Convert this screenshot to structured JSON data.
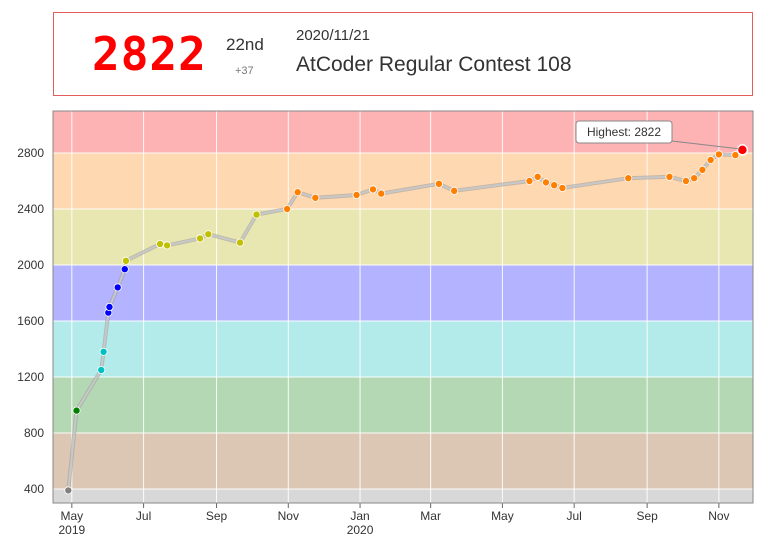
{
  "status": {
    "rating": "2822",
    "place": "22nd",
    "diff": "+37",
    "date": "2020/11/21",
    "contest": "AtCoder Regular Contest 108"
  },
  "chart_data": {
    "type": "line",
    "title": "",
    "xlabel": "",
    "ylabel": "",
    "ylim": [
      300,
      3100
    ],
    "xlim": [
      "2019-04-15",
      "2020-11-30"
    ],
    "grid": true,
    "y_ticks": [
      400,
      800,
      1200,
      1600,
      2000,
      2400,
      2800
    ],
    "x_ticks": [
      {
        "date": "2019-05-01",
        "label": "May",
        "sub": "2019"
      },
      {
        "date": "2019-07-01",
        "label": "Jul",
        "sub": ""
      },
      {
        "date": "2019-09-01",
        "label": "Sep",
        "sub": ""
      },
      {
        "date": "2019-11-01",
        "label": "Nov",
        "sub": ""
      },
      {
        "date": "2020-01-01",
        "label": "Jan",
        "sub": "2020"
      },
      {
        "date": "2020-03-01",
        "label": "Mar",
        "sub": ""
      },
      {
        "date": "2020-05-01",
        "label": "May",
        "sub": ""
      },
      {
        "date": "2020-07-01",
        "label": "Jul",
        "sub": ""
      },
      {
        "date": "2020-09-01",
        "label": "Sep",
        "sub": ""
      },
      {
        "date": "2020-11-01",
        "label": "Nov",
        "sub": ""
      }
    ],
    "bands": [
      {
        "from": 300,
        "to": 400,
        "color": "#d8d8d8"
      },
      {
        "from": 400,
        "to": 800,
        "color": "#dcc7b4"
      },
      {
        "from": 800,
        "to": 1200,
        "color": "#b3d8b3"
      },
      {
        "from": 1200,
        "to": 1600,
        "color": "#b3ebeb"
      },
      {
        "from": 1600,
        "to": 2000,
        "color": "#b3b3ff"
      },
      {
        "from": 2000,
        "to": 2400,
        "color": "#e9e7b1"
      },
      {
        "from": 2400,
        "to": 2800,
        "color": "#fed8b1"
      },
      {
        "from": 2800,
        "to": 3100,
        "color": "#fdb3b3"
      }
    ],
    "highlight_label": "Highest: 2822",
    "series": [
      {
        "points": [
          {
            "x": "2019-04-28",
            "y": 390
          },
          {
            "x": "2019-05-05",
            "y": 960
          },
          {
            "x": "2019-05-26",
            "y": 1250
          },
          {
            "x": "2019-05-28",
            "y": 1380
          },
          {
            "x": "2019-06-01",
            "y": 1660
          },
          {
            "x": "2019-06-02",
            "y": 1700
          },
          {
            "x": "2019-06-09",
            "y": 1840
          },
          {
            "x": "2019-06-15",
            "y": 1970
          },
          {
            "x": "2019-06-16",
            "y": 2030
          },
          {
            "x": "2019-07-15",
            "y": 2150
          },
          {
            "x": "2019-07-21",
            "y": 2140
          },
          {
            "x": "2019-08-18",
            "y": 2190
          },
          {
            "x": "2019-08-25",
            "y": 2220
          },
          {
            "x": "2019-09-21",
            "y": 2160
          },
          {
            "x": "2019-10-05",
            "y": 2360
          },
          {
            "x": "2019-10-31",
            "y": 2400
          },
          {
            "x": "2019-11-09",
            "y": 2520
          },
          {
            "x": "2019-11-24",
            "y": 2480
          },
          {
            "x": "2019-12-29",
            "y": 2500
          },
          {
            "x": "2020-01-12",
            "y": 2540
          },
          {
            "x": "2020-01-19",
            "y": 2510
          },
          {
            "x": "2020-03-08",
            "y": 2580
          },
          {
            "x": "2020-03-21",
            "y": 2530
          },
          {
            "x": "2020-05-24",
            "y": 2600
          },
          {
            "x": "2020-05-31",
            "y": 2630
          },
          {
            "x": "2020-06-07",
            "y": 2590
          },
          {
            "x": "2020-06-14",
            "y": 2570
          },
          {
            "x": "2020-06-21",
            "y": 2550
          },
          {
            "x": "2020-08-16",
            "y": 2620
          },
          {
            "x": "2020-09-20",
            "y": 2630
          },
          {
            "x": "2020-10-04",
            "y": 2600
          },
          {
            "x": "2020-10-11",
            "y": 2620
          },
          {
            "x": "2020-10-18",
            "y": 2680
          },
          {
            "x": "2020-10-25",
            "y": 2750
          },
          {
            "x": "2020-11-01",
            "y": 2790
          },
          {
            "x": "2020-11-15",
            "y": 2785
          },
          {
            "x": "2020-11-21",
            "y": 2822
          }
        ]
      }
    ]
  }
}
